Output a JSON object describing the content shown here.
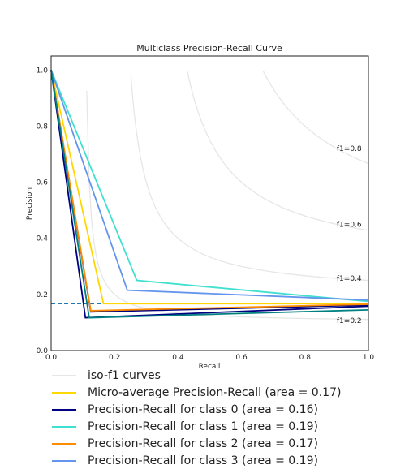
{
  "chart_data": {
    "type": "line",
    "title": "Multiclass Precision-Recall Curve",
    "xlabel": "Recall",
    "ylabel": "Precision",
    "xlim": [
      0.0,
      1.0
    ],
    "ylim": [
      0.0,
      1.05
    ],
    "xticks": [
      "0.0",
      "0.2",
      "0.4",
      "0.6",
      "0.8",
      "1.0"
    ],
    "yticks": [
      "0.0",
      "0.2",
      "0.4",
      "0.6",
      "0.8",
      "1.0"
    ],
    "grid": false,
    "legend_position": "below",
    "iso_f1": {
      "label": "iso-f1 curves",
      "color": "#e6e6e6",
      "values": [
        0.2,
        0.4,
        0.6,
        0.8
      ],
      "labels": [
        "f1=0.2",
        "f1=0.4",
        "f1=0.6",
        "f1=0.8"
      ]
    },
    "baseline": {
      "y": 0.167,
      "color": "#1f77b4",
      "style": "dashed"
    },
    "series": [
      {
        "name": "Micro-average Precision-Recall (area = 0.17)",
        "color": "#ffd700",
        "x": [
          0.0,
          0.165,
          1.0
        ],
        "y": [
          1.0,
          0.167,
          0.167
        ]
      },
      {
        "name": "Precision-Recall for class 0 (area = 0.16)",
        "color": "#000080",
        "x": [
          0.0,
          0.125,
          1.0
        ],
        "y": [
          1.0,
          0.138,
          0.162
        ]
      },
      {
        "name": "Precision-Recall for class 1 (area = 0.19)",
        "color": "#40e0d0",
        "x": [
          0.0,
          0.27,
          1.0
        ],
        "y": [
          1.0,
          0.25,
          0.175
        ]
      },
      {
        "name": "Precision-Recall for class 2 (area = 0.17)",
        "color": "#ff8c00",
        "x": [
          0.0,
          0.125,
          1.0
        ],
        "y": [
          1.0,
          0.142,
          0.165
        ]
      },
      {
        "name": "Precision-Recall for class 3 (area = 0.19)",
        "color": "#6495ed",
        "x": [
          0.0,
          0.24,
          1.0
        ],
        "y": [
          1.0,
          0.215,
          0.18
        ]
      },
      {
        "name": "",
        "color": "#000080",
        "x": [
          0.0,
          0.108,
          1.0
        ],
        "y": [
          1.0,
          0.117,
          0.158
        ]
      },
      {
        "name": "",
        "color": "#008080",
        "x": [
          0.0,
          0.12,
          1.0
        ],
        "y": [
          1.0,
          0.117,
          0.145
        ]
      }
    ]
  }
}
